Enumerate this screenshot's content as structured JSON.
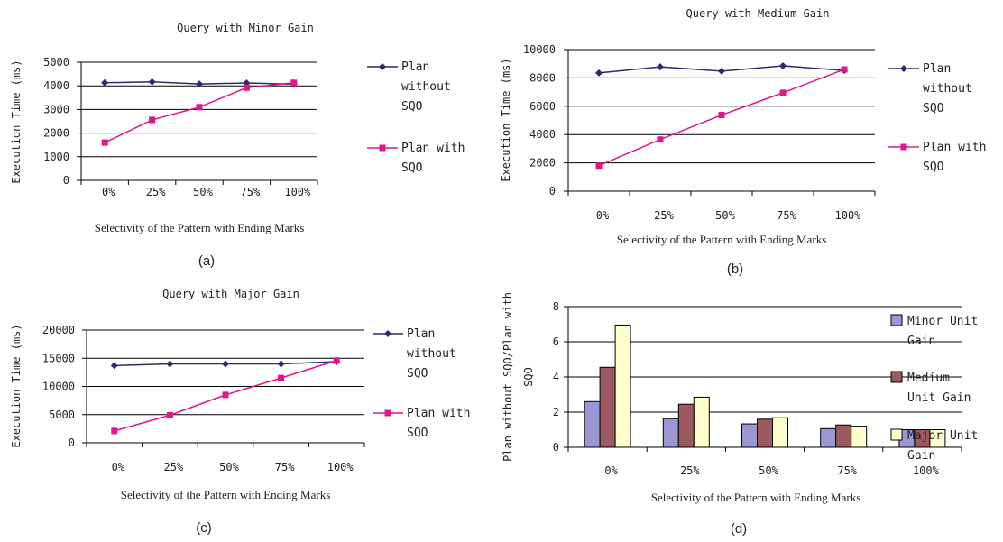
{
  "colors": {
    "plan_without": "#2e2a6b",
    "plan_with": "#e0168a",
    "minor": "#9b97d4",
    "medium": "#9c5a5e",
    "major": "#ffffcc"
  },
  "chart_data": [
    {
      "type": "line",
      "title": "Query with Minor Gain",
      "xlabel": "Selectivity of the Pattern with Ending Marks",
      "ylabel": "Execution Time (ms)",
      "caption": "(a)",
      "categories": [
        "0%",
        "25%",
        "50%",
        "75%",
        "100%"
      ],
      "ylim": [
        0,
        5000
      ],
      "yticks": [
        "0",
        "1000",
        "2000",
        "3000",
        "4000",
        "5000"
      ],
      "series": [
        {
          "name_lines": [
            "Plan",
            "without",
            "SQO"
          ],
          "values": [
            4130,
            4170,
            4080,
            4120,
            4070
          ]
        },
        {
          "name_lines": [
            "Plan with",
            "SQO"
          ],
          "values": [
            1600,
            2560,
            3100,
            3920,
            4130
          ]
        }
      ]
    },
    {
      "type": "line",
      "title": "Query with Medium Gain",
      "xlabel": "Selectivity of the Pattern with Ending Marks",
      "ylabel": "Execution Time (ms)",
      "caption": "(b)",
      "categories": [
        "0%",
        "25%",
        "50%",
        "75%",
        "100%"
      ],
      "ylim": [
        0,
        10000
      ],
      "yticks": [
        "0",
        "2000",
        "4000",
        "6000",
        "8000",
        "10000"
      ],
      "series": [
        {
          "name_lines": [
            "Plan",
            "without",
            "SQO"
          ],
          "values": [
            8350,
            8780,
            8480,
            8850,
            8530
          ]
        },
        {
          "name_lines": [
            "Plan with",
            "SQO"
          ],
          "values": [
            1800,
            3650,
            5380,
            6950,
            8600
          ]
        }
      ]
    },
    {
      "type": "line",
      "title": "Query with Major Gain",
      "xlabel": "Selectivity of the Pattern with Ending Marks",
      "ylabel": "Execution Time (ms)",
      "caption": "(c)",
      "categories": [
        "0%",
        "25%",
        "50%",
        "75%",
        "100%"
      ],
      "ylim": [
        0,
        20000
      ],
      "yticks": [
        "0",
        "5000",
        "10000",
        "15000",
        "20000"
      ],
      "series": [
        {
          "name_lines": [
            "Plan",
            "without",
            "SQO"
          ],
          "values": [
            13700,
            14000,
            14000,
            14000,
            14400
          ]
        },
        {
          "name_lines": [
            "Plan with",
            "SQO"
          ],
          "values": [
            2100,
            4900,
            8500,
            11500,
            14600
          ]
        }
      ]
    },
    {
      "type": "bar",
      "title": "",
      "xlabel": "Selectivity of the Pattern with Ending Marks",
      "ylabel_lines": [
        "Plan without SQO/Plan with",
        "SQO"
      ],
      "caption": "(d)",
      "categories": [
        "0%",
        "25%",
        "50%",
        "75%",
        "100%"
      ],
      "ylim": [
        0,
        8
      ],
      "yticks": [
        "0",
        "2",
        "4",
        "6",
        "8"
      ],
      "series": [
        {
          "name_lines": [
            "Minor Unit",
            "Gain"
          ],
          "values": [
            2.6,
            1.63,
            1.33,
            1.06,
            1.0
          ]
        },
        {
          "name_lines": [
            "Medium",
            "Unit Gain"
          ],
          "values": [
            4.55,
            2.45,
            1.6,
            1.27,
            1.0
          ]
        },
        {
          "name_lines": [
            "Major Unit",
            "Gain"
          ],
          "values": [
            6.95,
            2.85,
            1.68,
            1.2,
            1.0
          ]
        }
      ]
    }
  ]
}
